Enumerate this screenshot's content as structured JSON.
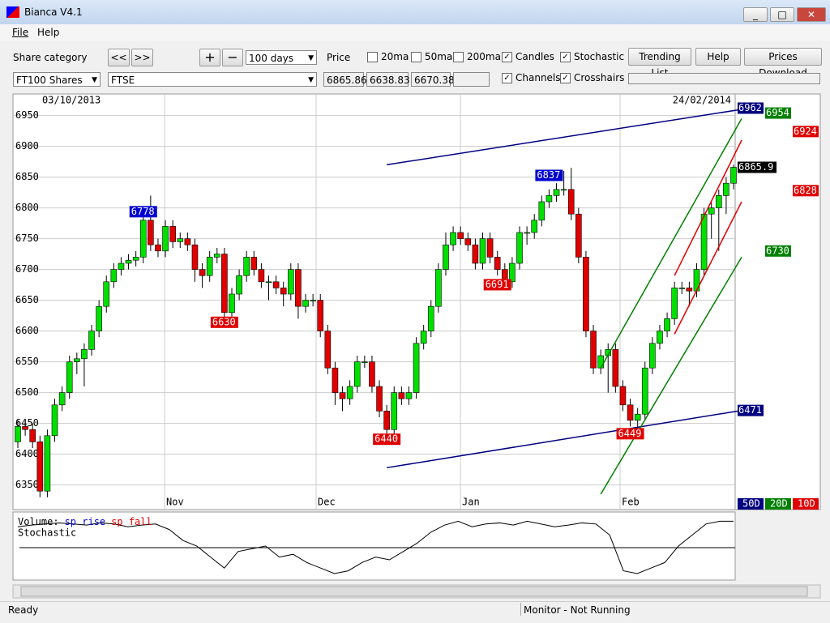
{
  "window": {
    "title": "Bianca V4.1"
  },
  "menu": [
    "File",
    "Help"
  ],
  "toolbar": {
    "share_category_label": "Share category",
    "prev": "<<",
    "next": ">>",
    "zoom_in": "+",
    "zoom_out": "−",
    "period": "100 days",
    "price_label": "Price",
    "category": "FT100 Shares",
    "index": "FTSE",
    "prices": [
      "6865.86",
      "6638.83",
      "6670.38"
    ],
    "checkboxes": [
      {
        "label": "20ma",
        "checked": false
      },
      {
        "label": "50ma",
        "checked": false
      },
      {
        "label": "200ma",
        "checked": false
      },
      {
        "label": "Candles",
        "checked": true
      },
      {
        "label": "Stochastic",
        "checked": true
      },
      {
        "label": "Channels",
        "checked": true
      },
      {
        "label": "Crosshairs",
        "checked": true
      }
    ],
    "buttons": [
      "Trending List",
      "Help",
      "Prices Download"
    ]
  },
  "chart": {
    "type": "candlestick",
    "start_date": "03/10/2013",
    "end_date": "24/02/2014",
    "months": [
      "Nov",
      "Dec",
      "Jan",
      "Feb"
    ],
    "ylim": [
      6310,
      6985
    ],
    "yticks": [
      6350,
      6400,
      6450,
      6500,
      6550,
      6600,
      6650,
      6700,
      6750,
      6800,
      6850,
      6900,
      6950
    ],
    "rise_color": "#00e000",
    "fall_color": "#e00000",
    "candles": [
      [
        6420,
        6455,
        6410,
        6445
      ],
      [
        6445,
        6455,
        6430,
        6440
      ],
      [
        6440,
        6450,
        6410,
        6420
      ],
      [
        6420,
        6430,
        6330,
        6340
      ],
      [
        6340,
        6440,
        6330,
        6430
      ],
      [
        6430,
        6490,
        6420,
        6480
      ],
      [
        6480,
        6510,
        6470,
        6500
      ],
      [
        6500,
        6560,
        6490,
        6550
      ],
      [
        6550,
        6565,
        6530,
        6555
      ],
      [
        6555,
        6580,
        6510,
        6570
      ],
      [
        6570,
        6610,
        6560,
        6600
      ],
      [
        6600,
        6650,
        6590,
        6640
      ],
      [
        6640,
        6690,
        6630,
        6680
      ],
      [
        6680,
        6710,
        6670,
        6700
      ],
      [
        6700,
        6720,
        6690,
        6710
      ],
      [
        6710,
        6725,
        6700,
        6715
      ],
      [
        6715,
        6730,
        6705,
        6720
      ],
      [
        6720,
        6790,
        6710,
        6780
      ],
      [
        6780,
        6820,
        6730,
        6740
      ],
      [
        6740,
        6750,
        6720,
        6730
      ],
      [
        6730,
        6780,
        6720,
        6770
      ],
      [
        6770,
        6780,
        6735,
        6745
      ],
      [
        6745,
        6760,
        6735,
        6750
      ],
      [
        6750,
        6760,
        6730,
        6740
      ],
      [
        6740,
        6750,
        6680,
        6700
      ],
      [
        6700,
        6710,
        6670,
        6690
      ],
      [
        6690,
        6730,
        6680,
        6720
      ],
      [
        6720,
        6735,
        6710,
        6725
      ],
      [
        6725,
        6735,
        6620,
        6630
      ],
      [
        6630,
        6670,
        6620,
        6660
      ],
      [
        6660,
        6700,
        6650,
        6690
      ],
      [
        6690,
        6730,
        6680,
        6720
      ],
      [
        6720,
        6730,
        6690,
        6700
      ],
      [
        6700,
        6710,
        6670,
        6680
      ],
      [
        6680,
        6690,
        6650,
        6680
      ],
      [
        6680,
        6690,
        6660,
        6670
      ],
      [
        6670,
        6680,
        6640,
        6660
      ],
      [
        6660,
        6710,
        6650,
        6700
      ],
      [
        6700,
        6710,
        6620,
        6640
      ],
      [
        6640,
        6660,
        6630,
        6650
      ],
      [
        6650,
        6660,
        6640,
        6650
      ],
      [
        6650,
        6660,
        6590,
        6600
      ],
      [
        6600,
        6610,
        6530,
        6540
      ],
      [
        6540,
        6550,
        6480,
        6500
      ],
      [
        6500,
        6510,
        6470,
        6490
      ],
      [
        6490,
        6520,
        6480,
        6510
      ],
      [
        6510,
        6560,
        6500,
        6550
      ],
      [
        6550,
        6560,
        6540,
        6550
      ],
      [
        6550,
        6560,
        6500,
        6510
      ],
      [
        6510,
        6520,
        6460,
        6470
      ],
      [
        6470,
        6480,
        6430,
        6440
      ],
      [
        6440,
        6510,
        6430,
        6500
      ],
      [
        6500,
        6510,
        6480,
        6490
      ],
      [
        6490,
        6510,
        6480,
        6500
      ],
      [
        6500,
        6590,
        6490,
        6580
      ],
      [
        6580,
        6610,
        6570,
        6600
      ],
      [
        6600,
        6650,
        6590,
        6640
      ],
      [
        6640,
        6710,
        6630,
        6700
      ],
      [
        6700,
        6760,
        6690,
        6740
      ],
      [
        6740,
        6770,
        6730,
        6760
      ],
      [
        6760,
        6770,
        6740,
        6750
      ],
      [
        6750,
        6760,
        6730,
        6740
      ],
      [
        6740,
        6750,
        6700,
        6710
      ],
      [
        6710,
        6760,
        6700,
        6750
      ],
      [
        6750,
        6760,
        6710,
        6720
      ],
      [
        6720,
        6730,
        6690,
        6700
      ],
      [
        6700,
        6710,
        6670,
        6680
      ],
      [
        6680,
        6720,
        6670,
        6710
      ],
      [
        6710,
        6770,
        6700,
        6760
      ],
      [
        6760,
        6770,
        6740,
        6760
      ],
      [
        6760,
        6790,
        6750,
        6780
      ],
      [
        6780,
        6820,
        6770,
        6810
      ],
      [
        6810,
        6830,
        6800,
        6820
      ],
      [
        6820,
        6840,
        6810,
        6830
      ],
      [
        6830,
        6860,
        6820,
        6830
      ],
      [
        6830,
        6865,
        6780,
        6790
      ],
      [
        6790,
        6800,
        6710,
        6720
      ],
      [
        6720,
        6730,
        6590,
        6600
      ],
      [
        6600,
        6610,
        6530,
        6540
      ],
      [
        6540,
        6570,
        6530,
        6560
      ],
      [
        6560,
        6580,
        6500,
        6570
      ],
      [
        6570,
        6580,
        6500,
        6510
      ],
      [
        6510,
        6520,
        6470,
        6480
      ],
      [
        6480,
        6490,
        6445,
        6455
      ],
      [
        6455,
        6475,
        6440,
        6465
      ],
      [
        6465,
        6550,
        6455,
        6540
      ],
      [
        6540,
        6590,
        6530,
        6580
      ],
      [
        6580,
        6610,
        6570,
        6600
      ],
      [
        6600,
        6630,
        6590,
        6620
      ],
      [
        6620,
        6680,
        6610,
        6670
      ],
      [
        6670,
        6680,
        6660,
        6670
      ],
      [
        6670,
        6680,
        6640,
        6665
      ],
      [
        6665,
        6710,
        6655,
        6700
      ],
      [
        6700,
        6800,
        6690,
        6790
      ],
      [
        6790,
        6810,
        6750,
        6800
      ],
      [
        6800,
        6830,
        6730,
        6820
      ],
      [
        6820,
        6850,
        6790,
        6840
      ],
      [
        6840,
        6870,
        6830,
        6866
      ]
    ],
    "annotations": [
      {
        "value": 6778,
        "color": "#0000d0"
      },
      {
        "value": 6630,
        "color": "#e00000"
      },
      {
        "value": 6440,
        "color": "#e00000"
      },
      {
        "value": 6691,
        "color": "#e00000"
      },
      {
        "value": 6837,
        "color": "#0000d0"
      },
      {
        "value": 6449,
        "color": "#e00000"
      }
    ],
    "channels": [
      {
        "name": "50D",
        "color": "#000080",
        "lines": [
          [
            6870,
            6960
          ],
          [
            6378,
            6471
          ]
        ],
        "labels": [
          6962,
          6471
        ]
      },
      {
        "name": "20D",
        "color": "#008000",
        "lines": [
          [
            6540,
            6945
          ],
          [
            6335,
            6720
          ]
        ],
        "labels": [
          6954,
          6730
        ]
      },
      {
        "name": "10D",
        "color": "#e00000",
        "lines": [
          [
            6690,
            6910
          ],
          [
            6595,
            6810
          ]
        ],
        "labels": [
          6924,
          6828
        ]
      }
    ],
    "last_price": 6865.9,
    "lower_panel": {
      "volume_label": "Volume:",
      "rise_label": "sp rise",
      "fall_label": "sp fall",
      "rise_color": "#0000d0",
      "fall_color": "#e00000",
      "stochastic_label": "Stochastic",
      "ylim": [
        0,
        100
      ],
      "stochastic": [
        85,
        88,
        90,
        92,
        90,
        88,
        92,
        90,
        85,
        88,
        90,
        80,
        60,
        50,
        30,
        10,
        40,
        45,
        50,
        30,
        35,
        20,
        10,
        0,
        5,
        20,
        30,
        25,
        40,
        55,
        75,
        88,
        95,
        85,
        90,
        92,
        88,
        95,
        90,
        85,
        88,
        92,
        90,
        70,
        5,
        0,
        10,
        20,
        50,
        70,
        90,
        95,
        95
      ]
    }
  },
  "status": {
    "left": "Ready",
    "right": "Monitor - Not Running"
  }
}
